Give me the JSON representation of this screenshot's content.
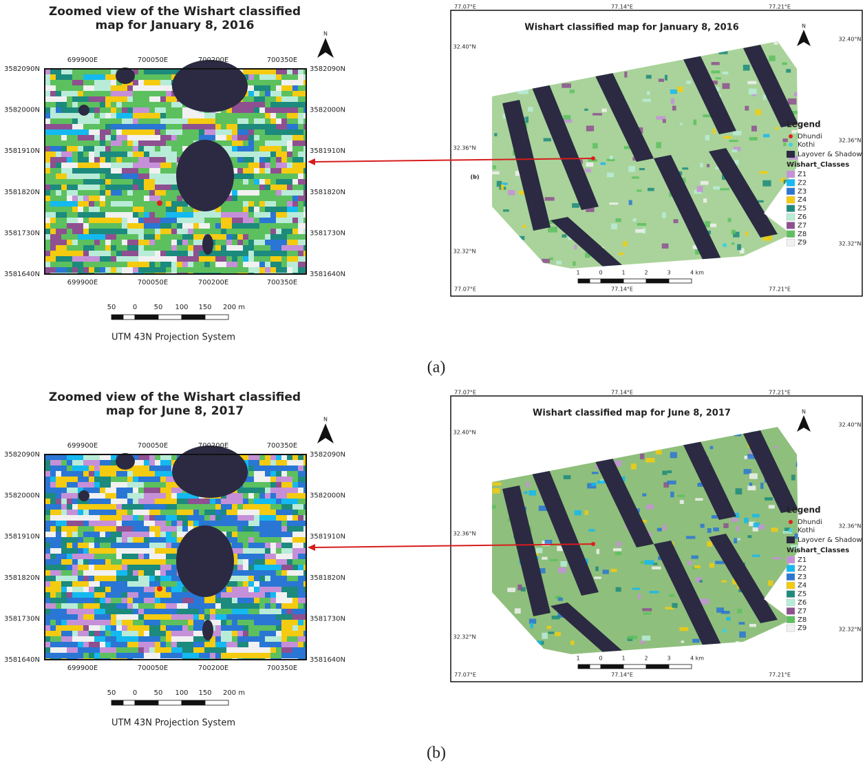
{
  "panels": [
    {
      "caption": "(a)",
      "zoom": {
        "title_lines": [
          "Zoomed view of the Wishart classified",
          "map for January 8, 2016"
        ],
        "north": "N",
        "easting_labels": [
          "699900E",
          "700050E",
          "700200E",
          "700350E"
        ],
        "northing_labels": [
          "3582090N",
          "3582000N",
          "3581910N",
          "3581820N",
          "3581730N",
          "3581640N"
        ],
        "scale_labels": [
          "50",
          "0",
          "50",
          "100",
          "150",
          "200 m"
        ],
        "projection": "UTM 43N Projection System"
      },
      "full": {
        "title": "Wishart classified map for January 8, 2016",
        "north": "N",
        "lon_labels": [
          "77.07°E",
          "77.14°E",
          "77.21°E"
        ],
        "lat_labels": [
          "32.40°N",
          "32.36°N",
          "32.32°N"
        ],
        "inset_label": "(b)",
        "scale_labels": [
          "1",
          "0",
          "1",
          "2",
          "3",
          "4 km"
        ],
        "legend": {
          "title": "Legend",
          "points": [
            {
              "name": "Dhundi",
              "color": "#e0201e"
            },
            {
              "name": "Kothi",
              "color": "#3fd0e0"
            }
          ],
          "layover": {
            "name": "Layover & Shadow",
            "color": "#2b2a42"
          },
          "classes_title": "Wishart_Classes",
          "classes": [
            {
              "name": "Z1",
              "color": "#c690d8"
            },
            {
              "name": "Z2",
              "color": "#14b9f0"
            },
            {
              "name": "Z3",
              "color": "#2a76d4"
            },
            {
              "name": "Z4",
              "color": "#f4cb10"
            },
            {
              "name": "Z5",
              "color": "#1c8a7c"
            },
            {
              "name": "Z6",
              "color": "#b8ecd8"
            },
            {
              "name": "Z7",
              "color": "#8e5090"
            },
            {
              "name": "Z8",
              "color": "#5cc05e"
            },
            {
              "name": "Z9",
              "color": "#f1f1f1"
            }
          ]
        }
      }
    },
    {
      "caption": "(b)",
      "zoom": {
        "title_lines": [
          "Zoomed view of the Wishart classified",
          "map for June 8, 2017"
        ],
        "north": "N",
        "easting_labels": [
          "699900E",
          "700050E",
          "700200E",
          "700350E"
        ],
        "northing_labels": [
          "3582090N",
          "3582000N",
          "3581910N",
          "3581820N",
          "3581730N",
          "3581640N"
        ],
        "scale_labels": [
          "50",
          "0",
          "50",
          "100",
          "150",
          "200 m"
        ],
        "projection": "UTM 43N Projection System"
      },
      "full": {
        "title": "Wishart classified map for June 8, 2017",
        "north": "N",
        "lon_labels": [
          "77.07°E",
          "77.14°E",
          "77.21°E"
        ],
        "lat_labels": [
          "32.40°N",
          "32.36°N",
          "32.32°N"
        ],
        "scale_labels": [
          "1",
          "0",
          "1",
          "2",
          "3",
          "4 km"
        ],
        "legend": {
          "title": "Legend",
          "points": [
            {
              "name": "Dhundi",
              "color": "#e0201e"
            },
            {
              "name": "Kothi",
              "color": "#3fd0e0"
            }
          ],
          "layover": {
            "name": "Layover & Shadow",
            "color": "#2b2a42"
          },
          "classes_title": "Wishart_Classes",
          "classes": [
            {
              "name": "Z1",
              "color": "#c690d8"
            },
            {
              "name": "Z2",
              "color": "#14b9f0"
            },
            {
              "name": "Z3",
              "color": "#2a76d4"
            },
            {
              "name": "Z4",
              "color": "#f4cb10"
            },
            {
              "name": "Z5",
              "color": "#1c8a7c"
            },
            {
              "name": "Z6",
              "color": "#b8ecd8"
            },
            {
              "name": "Z7",
              "color": "#8e5090"
            },
            {
              "name": "Z8",
              "color": "#5cc05e"
            },
            {
              "name": "Z9",
              "color": "#f1f1f1"
            }
          ]
        }
      }
    }
  ]
}
